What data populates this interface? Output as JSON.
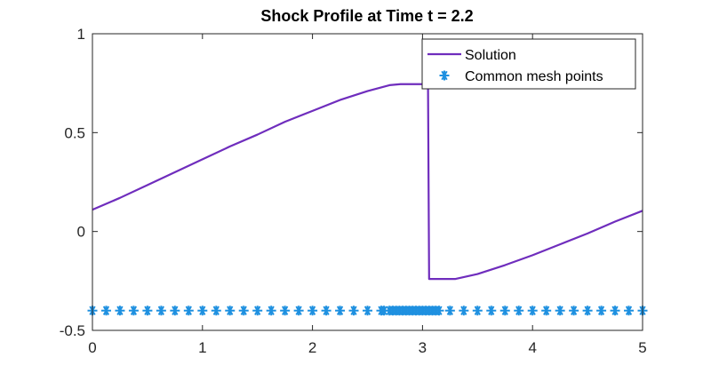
{
  "chart_data": {
    "type": "line",
    "title": "Shock Profile at Time t = 2.2",
    "xlabel": "",
    "ylabel": "",
    "xlim": [
      0,
      5
    ],
    "ylim": [
      -0.5,
      1
    ],
    "grid": false,
    "legend_position": "top-right",
    "x_ticks": [
      {
        "value": 0,
        "label": "0"
      },
      {
        "value": 1,
        "label": "1"
      },
      {
        "value": 2,
        "label": "2"
      },
      {
        "value": 3,
        "label": "3"
      },
      {
        "value": 4,
        "label": "4"
      },
      {
        "value": 5,
        "label": "5"
      }
    ],
    "y_ticks": [
      {
        "value": -0.5,
        "label": "-0.5"
      },
      {
        "value": 0,
        "label": "0"
      },
      {
        "value": 0.5,
        "label": "0.5"
      },
      {
        "value": 1,
        "label": "1"
      }
    ],
    "series": [
      {
        "name": "Solution",
        "style": "line",
        "color": "#6F2DBD",
        "x": [
          0,
          0.25,
          0.5,
          0.75,
          1.0,
          1.25,
          1.5,
          1.75,
          2.0,
          2.25,
          2.5,
          2.7,
          2.8,
          2.9,
          3.0,
          3.05,
          3.06,
          3.1,
          3.3,
          3.5,
          3.75,
          4.0,
          4.25,
          4.5,
          4.75,
          5.0
        ],
        "y": [
          0.11,
          0.17,
          0.235,
          0.3,
          0.365,
          0.43,
          0.49,
          0.555,
          0.61,
          0.665,
          0.71,
          0.74,
          0.745,
          0.745,
          0.745,
          0.745,
          -0.24,
          -0.24,
          -0.24,
          -0.215,
          -0.17,
          -0.12,
          -0.065,
          -0.01,
          0.05,
          0.105
        ]
      },
      {
        "name": "Common mesh points",
        "style": "marker",
        "marker": "asterisk",
        "color": "#1E90E0",
        "x": [
          0,
          0.125,
          0.25,
          0.375,
          0.5,
          0.625,
          0.75,
          0.875,
          1.0,
          1.125,
          1.25,
          1.375,
          1.5,
          1.625,
          1.75,
          1.875,
          2.0,
          2.125,
          2.25,
          2.375,
          2.5,
          2.625,
          2.65,
          2.7,
          2.73,
          2.76,
          2.79,
          2.82,
          2.85,
          2.88,
          2.91,
          2.94,
          2.97,
          3.0,
          3.03,
          3.06,
          3.09,
          3.12,
          3.15,
          3.25,
          3.375,
          3.5,
          3.625,
          3.75,
          3.875,
          4.0,
          4.125,
          4.25,
          4.375,
          4.5,
          4.625,
          4.75,
          4.875,
          5.0
        ],
        "y_constant": -0.4
      }
    ]
  }
}
